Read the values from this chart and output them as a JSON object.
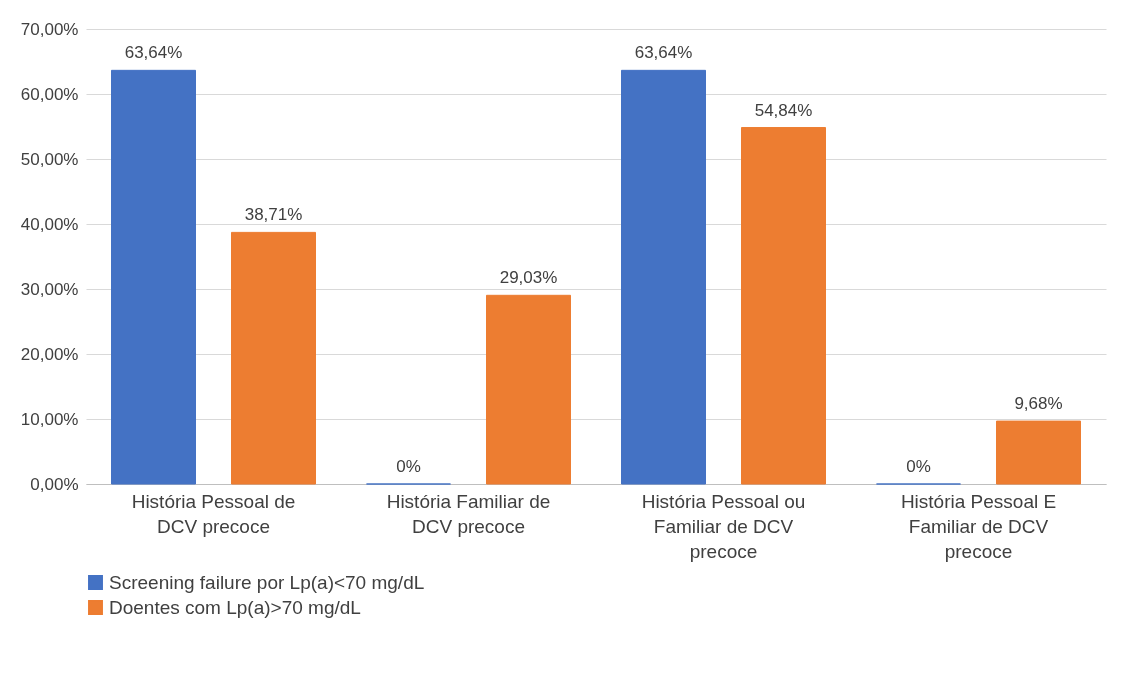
{
  "chart_data": {
    "type": "bar",
    "categories": [
      "História Pessoal de DCV precoce",
      "História Familiar de DCV precoce",
      "História Pessoal ou Familiar de DCV precoce",
      "História Pessoal E Familiar de DCV precoce"
    ],
    "series": [
      {
        "name": "Screening failure por Lp(a)<70 mg/dL",
        "color": "#4472c4",
        "values": [
          63.64,
          0,
          63.64,
          0
        ],
        "value_labels": [
          "63,64%",
          "0%",
          "63,64%",
          "0%"
        ]
      },
      {
        "name": "Doentes com Lp(a)>70 mg/dL",
        "color": "#ed7d31",
        "values": [
          38.71,
          29.03,
          54.84,
          9.68
        ],
        "value_labels": [
          "38,71%",
          "29,03%",
          "54,84%",
          "9,68%"
        ]
      }
    ],
    "ylim": [
      0,
      70
    ],
    "yticks": [
      {
        "value": 0,
        "label": "0,00%"
      },
      {
        "value": 10,
        "label": "10,00%"
      },
      {
        "value": 20,
        "label": "20,00%"
      },
      {
        "value": 30,
        "label": "30,00%"
      },
      {
        "value": 40,
        "label": "40,00%"
      },
      {
        "value": 50,
        "label": "50,00%"
      },
      {
        "value": 60,
        "label": "60,00%"
      },
      {
        "value": 70,
        "label": "70,00%"
      }
    ],
    "grid": "y",
    "legend": "bottom"
  }
}
